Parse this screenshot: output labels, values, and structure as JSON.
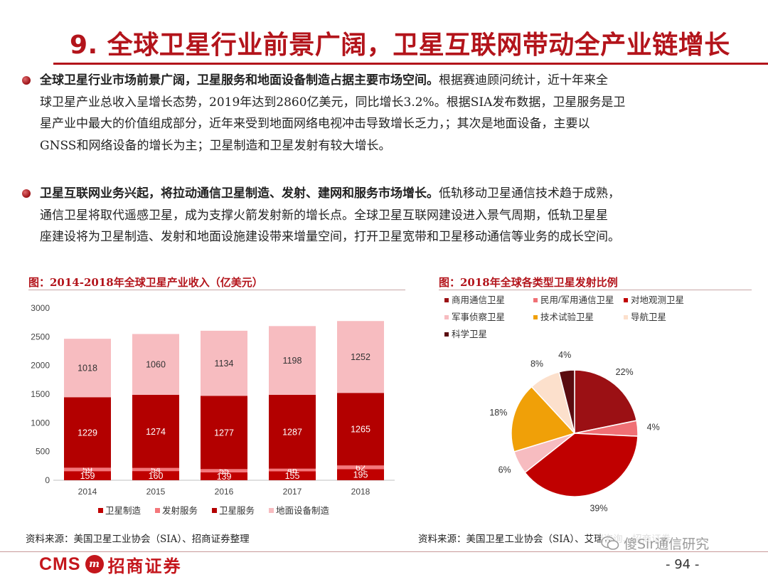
{
  "page": {
    "title": "9. 全球卫星行业前景广阔，卫星互联网带动全产业链增长",
    "page_number": "- 94 -"
  },
  "paragraphs": [
    {
      "bold": "全球卫星行业市场前景广阔，卫星服务和地面设备制造占据主要市场空间。",
      "text_lines": [
        "根据赛迪顾问统计，近十年来全",
        "球卫星产业总收入呈增长态势，2019年达到2860亿美元，同比增长3.2%。根据SIA发布数据，卫星服务是卫",
        "星产业中最大的价值组成部分，近年来受到地面网络电视冲击导致增长乏力，；其次是地面设备，主要以",
        "GNSS和网络设备的增长为主；卫星制造和卫星发射有较大增长。"
      ]
    },
    {
      "bold": "卫星互联网业务兴起，将拉动通信卫星制造、发射、建网和服务市场增长。",
      "text_lines": [
        "低轨移动卫星通信技术趋于成熟，",
        "通信卫星将取代遥感卫星，成为支撑火箭发射新的增长点。全球卫星互联网建设进入景气周期，低轨卫星星",
        "座建设将为卫星制造、发射和地面设施建设带来增量空间，打开卫星宽带和卫星移动通信等业务的成长空间。"
      ]
    }
  ],
  "left_figure": {
    "caption": "图：2014-2018年全球卫星产业收入（亿美元）",
    "source": "资料来源：美国卫星工业协会（SIA）、招商证券整理"
  },
  "right_figure": {
    "caption": "图：2018年全球各类型卫星发射比例",
    "source": "资料来源：美国卫星工业协会（SIA）、艾瑞咨询、招商证券"
  },
  "watermark": {
    "text": "傻Sir通信研究"
  },
  "logo": {
    "cms": "CMS",
    "mark": "m",
    "name": "招商证券"
  },
  "colors": {
    "brand_red": "#b3141b",
    "manufacturing": "#c00000",
    "launch": "#f4777b",
    "service": "#b30000",
    "ground": "#f7bcc0"
  },
  "chart_data": [
    {
      "type": "bar",
      "stacked": true,
      "categories": [
        "2014",
        "2015",
        "2016",
        "2017",
        "2018"
      ],
      "series": [
        {
          "name": "卫星制造",
          "values": [
            159,
            160,
            139,
            155,
            195
          ],
          "color": "#c00000"
        },
        {
          "name": "发射服务",
          "values": [
            59,
            54,
            55,
            46,
            62
          ],
          "color": "#f4777b"
        },
        {
          "name": "卫星服务",
          "values": [
            1229,
            1274,
            1277,
            1287,
            1265
          ],
          "color": "#b30000"
        },
        {
          "name": "地面设备制造",
          "values": [
            1018,
            1060,
            1134,
            1198,
            1252
          ],
          "color": "#f7bcc0"
        }
      ],
      "ylim": [
        0,
        3000
      ],
      "yticks": [
        0,
        500,
        1000,
        1500,
        2000,
        2500,
        3000
      ],
      "grid": false,
      "legend": "bottom"
    },
    {
      "type": "pie",
      "labels": [
        "商用通信卫星",
        "民用/军用通信卫星",
        "对地观测卫星",
        "军事侦察卫星",
        "技术试验卫星",
        "导航卫星",
        "科学卫星"
      ],
      "values": [
        22,
        4,
        39,
        6,
        18,
        8,
        4
      ],
      "value_labels": [
        "22%",
        "4%",
        "39%",
        "6%",
        "18%",
        "8%",
        "4%"
      ],
      "colors": [
        "#9b1014",
        "#f07075",
        "#c00000",
        "#f7bcc0",
        "#f0a008",
        "#fce0cc",
        "#5a0c10"
      ],
      "legend": "top"
    }
  ]
}
